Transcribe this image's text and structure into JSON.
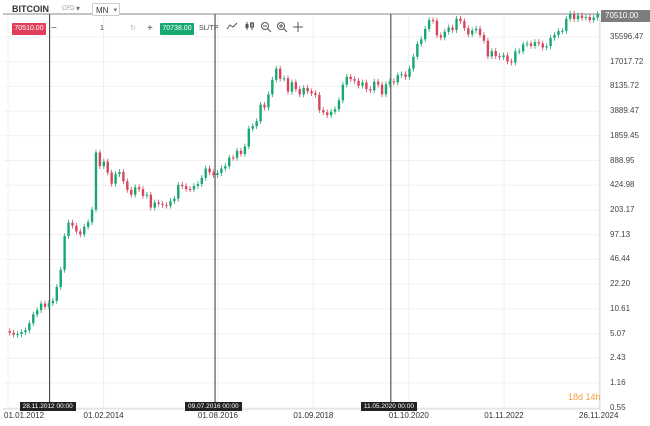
{
  "toolbar": {
    "symbol": "BITCOIN",
    "symbol_sub": "CFD",
    "symbol_arrow": "▾",
    "timeframe": "MN",
    "timeframe_arrow": "▾",
    "sell_price": "70510.00",
    "minus": "−",
    "quantity": "1",
    "quantity_reset": "↻",
    "plus": "+",
    "buy_price": "70738.00",
    "sltp": "SL/TP",
    "tool_icons": [
      "line-chart-icon",
      "candlestick-icon",
      "zoom-out-icon",
      "zoom-in-icon",
      "crosshair-icon"
    ]
  },
  "last_price_tag": "70510.00",
  "time_remaining": "18d 14h",
  "vline_tags": [
    "28.11.2012 00:00",
    "09.07.2016 00:00",
    "11.05.2020 00:00"
  ],
  "colors": {
    "up": "#16a870",
    "down": "#d6455c",
    "accent_sell": "#e0405a",
    "accent_buy": "#16a870",
    "timer": "#f0a040"
  },
  "chart_data": {
    "type": "candlestick",
    "y_scale": "log",
    "ylim": [
      0.55,
      70510.0
    ],
    "y_ticks": [
      "70510.00",
      "35596.47",
      "17017.72",
      "8135.72",
      "3889.47",
      "1859.45",
      "888.95",
      "424.98",
      "203.17",
      "97.13",
      "46.44",
      "22.20",
      "10.61",
      "5.07",
      "2.43",
      "1.16",
      "0.55"
    ],
    "x_ticks": [
      "01.01.2012",
      "01.02.2014",
      "01.08.2016",
      "01.09.2018",
      "01.10.2020",
      "01.11.2022",
      "26.11.2024"
    ],
    "x_range": [
      "2012-01-01",
      "2024-11-26"
    ],
    "vertical_lines": [
      "2012-11-28",
      "2016-07-09",
      "2020-05-11"
    ],
    "series": [
      {
        "values": [
          5.2,
          4.9,
          5.0,
          5.3,
          5.6,
          6.9,
          9.0,
          10.2,
          12.4,
          11.3,
          12.6,
          13.5,
          20.4,
          34.0,
          93.0,
          139.0,
          127.0,
          107.0,
          98.0,
          123.0,
          141.0,
          205.0,
          1130.0,
          750.0,
          862.0,
          620.0,
          445.0,
          592.0,
          630.0,
          478.0,
          370.0,
          320.0,
          400.0,
          378.0,
          310.0,
          320.0,
          218.0,
          254.0,
          244.0,
          236.0,
          230.0,
          264.0,
          285.0,
          430.0,
          415.0,
          380.0,
          375.0,
          415.0,
          440.0,
          530.0,
          700.0,
          625.0,
          575.0,
          610.0,
          700.0,
          750.0,
          970.0,
          965.0,
          1190.0,
          1080.0,
          1350.0,
          2300.0,
          2480.0,
          2870.0,
          4700.0,
          4330.0,
          6400.0,
          9900.0,
          13800.0,
          10200.0,
          10350.0,
          6950.0,
          9200.0,
          7500.0,
          6400.0,
          7750.0,
          7000.0,
          6620.0,
          6300.0,
          4000.0,
          3740.0,
          3450.0,
          3820.0,
          4100.0,
          5350.0,
          8550.0,
          10800.0,
          10100.0,
          9600.0,
          8300.0,
          9150.0,
          7500.0,
          7200.0,
          9350.0,
          8550.0,
          6420.0,
          8630.0,
          9460.0,
          9140.0,
          11350.0,
          11650.0,
          10780.0,
          13800.0,
          19700.0,
          28900.0,
          33100.0,
          45200.0,
          58800.0,
          57700.0,
          37300.0,
          35000.0,
          41500.0,
          47100.0,
          43800.0,
          61300.0,
          57000.0,
          46200.0,
          38500.0,
          43200.0,
          45500.0,
          37700.0,
          31800.0,
          19900.0,
          23300.0,
          20050.0,
          19400.0,
          20500.0,
          17150.0,
          16550.0,
          23150.0,
          23150.0,
          28500.0,
          29250.0,
          27200.0,
          30450.0,
          29250.0,
          25950.0,
          27000.0,
          34600.0,
          37700.0,
          42300.0,
          42600.0,
          61200.0,
          71300.0,
          60600.0,
          67500.0,
          62700.0,
          64600.0,
          58900.0,
          63300.0,
          70510.0
        ]
      }
    ]
  }
}
